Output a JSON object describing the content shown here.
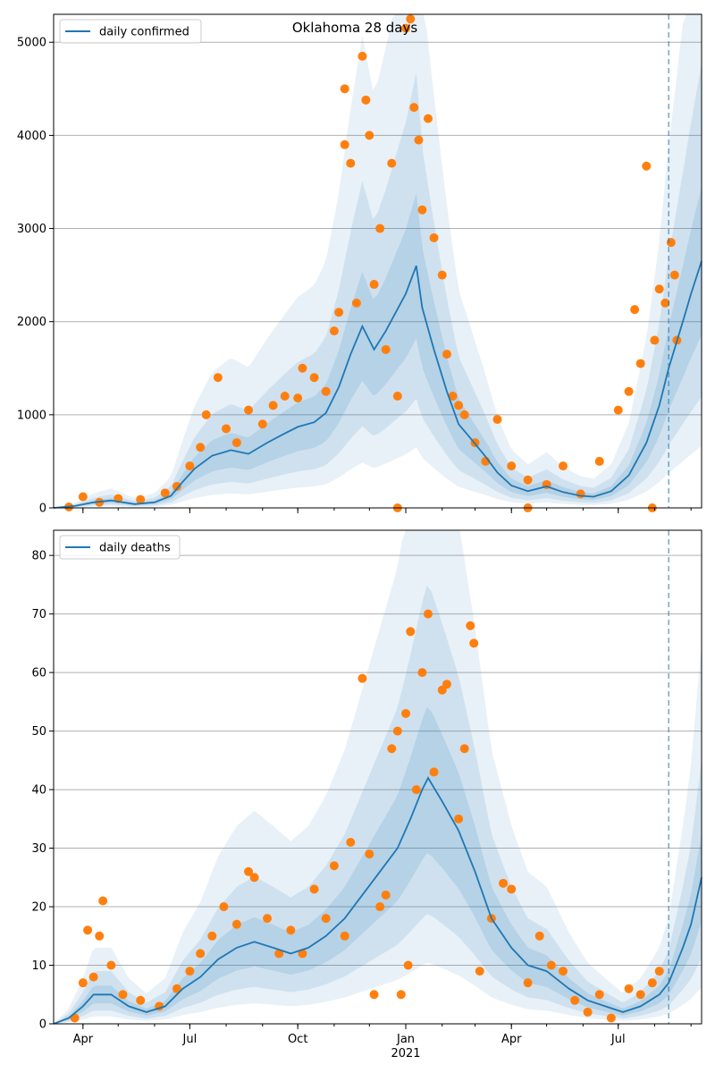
{
  "figure_title": "Oklahoma 28 days",
  "colors": {
    "line": "#1f77b4",
    "points": "#ff7f0e",
    "band": "#1f77b4",
    "grid": "#b0b0b0"
  },
  "x_axis": {
    "tick_labels": [
      "Apr",
      "Jul",
      "Oct",
      "Jan",
      "Apr",
      "Jul"
    ],
    "year_label": "2021",
    "range": [
      "2020-03-07",
      "2021-09-10"
    ],
    "forecast_start": "2021-08-13"
  },
  "chart_data": [
    {
      "type": "line",
      "legend": "daily confirmed",
      "legend_position": "top-left",
      "grid": "y",
      "ylim": [
        0,
        5300
      ],
      "yticks": [
        0,
        1000,
        2000,
        3000,
        4000,
        5000
      ],
      "series": [
        {
          "name": "daily confirmed",
          "kind": "line",
          "points": [
            [
              "2020-03-07",
              0
            ],
            [
              "2020-03-25",
              20
            ],
            [
              "2020-04-10",
              60
            ],
            [
              "2020-04-25",
              80
            ],
            [
              "2020-05-15",
              40
            ],
            [
              "2020-06-01",
              60
            ],
            [
              "2020-06-15",
              130
            ],
            [
              "2020-06-25",
              280
            ],
            [
              "2020-07-05",
              420
            ],
            [
              "2020-07-20",
              560
            ],
            [
              "2020-08-05",
              620
            ],
            [
              "2020-08-20",
              580
            ],
            [
              "2020-09-05",
              700
            ],
            [
              "2020-09-20",
              800
            ],
            [
              "2020-10-01",
              870
            ],
            [
              "2020-10-15",
              920
            ],
            [
              "2020-10-25",
              1020
            ],
            [
              "2020-11-05",
              1300
            ],
            [
              "2020-11-15",
              1650
            ],
            [
              "2020-11-25",
              1950
            ],
            [
              "2020-12-05",
              1700
            ],
            [
              "2020-12-15",
              1900
            ],
            [
              "2021-01-01",
              2300
            ],
            [
              "2021-01-10",
              2600
            ],
            [
              "2021-01-15",
              2150
            ],
            [
              "2021-01-25",
              1700
            ],
            [
              "2021-02-05",
              1250
            ],
            [
              "2021-02-15",
              900
            ],
            [
              "2021-02-25",
              750
            ],
            [
              "2021-03-10",
              550
            ],
            [
              "2021-03-20",
              380
            ],
            [
              "2021-04-01",
              240
            ],
            [
              "2021-04-15",
              180
            ],
            [
              "2021-05-01",
              230
            ],
            [
              "2021-05-15",
              170
            ],
            [
              "2021-05-30",
              130
            ],
            [
              "2021-06-10",
              120
            ],
            [
              "2021-06-25",
              180
            ],
            [
              "2021-07-10",
              350
            ],
            [
              "2021-07-25",
              700
            ],
            [
              "2021-08-05",
              1100
            ],
            [
              "2021-08-13",
              1500
            ],
            [
              "2021-08-25",
              2000
            ],
            [
              "2021-09-01",
              2300
            ],
            [
              "2021-09-10",
              2650
            ]
          ]
        },
        {
          "name": "reported daily confirmed",
          "kind": "scatter",
          "points": [
            [
              "2020-03-20",
              10
            ],
            [
              "2020-04-01",
              120
            ],
            [
              "2020-04-15",
              60
            ],
            [
              "2020-05-01",
              100
            ],
            [
              "2020-05-20",
              90
            ],
            [
              "2020-06-10",
              160
            ],
            [
              "2020-06-20",
              230
            ],
            [
              "2020-07-01",
              450
            ],
            [
              "2020-07-10",
              650
            ],
            [
              "2020-07-15",
              1000
            ],
            [
              "2020-07-25",
              1400
            ],
            [
              "2020-08-01",
              850
            ],
            [
              "2020-08-10",
              700
            ],
            [
              "2020-08-20",
              1050
            ],
            [
              "2020-09-01",
              900
            ],
            [
              "2020-09-10",
              1100
            ],
            [
              "2020-09-20",
              1200
            ],
            [
              "2020-10-01",
              1180
            ],
            [
              "2020-10-05",
              1500
            ],
            [
              "2020-10-15",
              1400
            ],
            [
              "2020-10-25",
              1250
            ],
            [
              "2020-11-01",
              1900
            ],
            [
              "2020-11-05",
              2100
            ],
            [
              "2020-11-10",
              3900
            ],
            [
              "2020-11-10",
              4500
            ],
            [
              "2020-11-15",
              3700
            ],
            [
              "2020-11-20",
              2200
            ],
            [
              "2020-11-25",
              4850
            ],
            [
              "2020-11-28",
              4380
            ],
            [
              "2020-12-01",
              4000
            ],
            [
              "2020-12-05",
              2400
            ],
            [
              "2020-12-10",
              3000
            ],
            [
              "2020-12-15",
              1700
            ],
            [
              "2020-12-20",
              3700
            ],
            [
              "2020-12-25",
              1200
            ],
            [
              "2021-01-01",
              5150
            ],
            [
              "2021-01-05",
              5250
            ],
            [
              "2021-01-08",
              4300
            ],
            [
              "2021-01-12",
              3950
            ],
            [
              "2021-01-15",
              3200
            ],
            [
              "2021-01-20",
              4180
            ],
            [
              "2021-01-25",
              2900
            ],
            [
              "2021-02-01",
              2500
            ],
            [
              "2021-02-05",
              1650
            ],
            [
              "2021-02-10",
              1200
            ],
            [
              "2021-02-15",
              1100
            ],
            [
              "2021-02-20",
              1000
            ],
            [
              "2021-03-01",
              700
            ],
            [
              "2021-03-10",
              500
            ],
            [
              "2021-03-20",
              950
            ],
            [
              "2021-04-01",
              450
            ],
            [
              "2021-04-15",
              300
            ],
            [
              "2021-05-01",
              250
            ],
            [
              "2021-05-15",
              450
            ],
            [
              "2021-05-30",
              150
            ],
            [
              "2021-06-15",
              500
            ],
            [
              "2021-07-01",
              1050
            ],
            [
              "2021-07-10",
              1250
            ],
            [
              "2021-07-15",
              2130
            ],
            [
              "2021-07-20",
              1550
            ],
            [
              "2021-07-25",
              3670
            ],
            [
              "2021-08-01",
              1800
            ],
            [
              "2021-08-05",
              2350
            ],
            [
              "2021-08-10",
              2200
            ],
            [
              "2021-08-15",
              2850
            ],
            [
              "2021-08-18",
              2500
            ],
            [
              "2021-08-20",
              1800
            ],
            [
              "2020-12-25",
              0
            ],
            [
              "2021-04-15",
              0
            ],
            [
              "2021-07-30",
              0
            ]
          ]
        }
      ]
    },
    {
      "type": "line",
      "legend": "daily deaths",
      "legend_position": "top-left",
      "grid": "y",
      "ylim": [
        0,
        84.3
      ],
      "yticks": [
        0,
        10,
        20,
        30,
        40,
        50,
        60,
        70,
        80
      ],
      "series": [
        {
          "name": "daily deaths",
          "kind": "line",
          "points": [
            [
              "2020-03-07",
              0
            ],
            [
              "2020-03-20",
              1
            ],
            [
              "2020-04-01",
              3
            ],
            [
              "2020-04-10",
              5
            ],
            [
              "2020-04-25",
              5
            ],
            [
              "2020-05-10",
              3
            ],
            [
              "2020-05-25",
              2
            ],
            [
              "2020-06-10",
              3
            ],
            [
              "2020-06-25",
              6
            ],
            [
              "2020-07-10",
              8
            ],
            [
              "2020-07-25",
              11
            ],
            [
              "2020-08-10",
              13
            ],
            [
              "2020-08-25",
              14
            ],
            [
              "2020-09-10",
              13
            ],
            [
              "2020-09-25",
              12
            ],
            [
              "2020-10-10",
              13
            ],
            [
              "2020-10-25",
              15
            ],
            [
              "2020-11-10",
              18
            ],
            [
              "2020-11-25",
              22
            ],
            [
              "2020-12-10",
              26
            ],
            [
              "2020-12-25",
              30
            ],
            [
              "2021-01-05",
              35
            ],
            [
              "2021-01-15",
              40
            ],
            [
              "2021-01-20",
              42
            ],
            [
              "2021-02-01",
              38
            ],
            [
              "2021-02-15",
              33
            ],
            [
              "2021-03-01",
              26
            ],
            [
              "2021-03-15",
              18
            ],
            [
              "2021-04-01",
              13
            ],
            [
              "2021-04-15",
              10
            ],
            [
              "2021-05-01",
              9
            ],
            [
              "2021-05-20",
              6
            ],
            [
              "2021-06-05",
              4
            ],
            [
              "2021-06-20",
              3
            ],
            [
              "2021-07-05",
              2
            ],
            [
              "2021-07-20",
              3
            ],
            [
              "2021-08-05",
              5
            ],
            [
              "2021-08-13",
              7
            ],
            [
              "2021-08-25",
              13
            ],
            [
              "2021-09-01",
              17
            ],
            [
              "2021-09-10",
              25
            ]
          ]
        },
        {
          "name": "reported daily deaths",
          "kind": "scatter",
          "points": [
            [
              "2020-03-25",
              1
            ],
            [
              "2020-04-01",
              7
            ],
            [
              "2020-04-05",
              16
            ],
            [
              "2020-04-10",
              8
            ],
            [
              "2020-04-15",
              15
            ],
            [
              "2020-04-18",
              21
            ],
            [
              "2020-04-25",
              10
            ],
            [
              "2020-05-05",
              5
            ],
            [
              "2020-05-20",
              4
            ],
            [
              "2020-06-05",
              3
            ],
            [
              "2020-06-20",
              6
            ],
            [
              "2020-07-01",
              9
            ],
            [
              "2020-07-10",
              12
            ],
            [
              "2020-07-20",
              15
            ],
            [
              "2020-07-30",
              20
            ],
            [
              "2020-08-10",
              17
            ],
            [
              "2020-08-20",
              26
            ],
            [
              "2020-08-25",
              25
            ],
            [
              "2020-09-05",
              18
            ],
            [
              "2020-09-15",
              12
            ],
            [
              "2020-09-25",
              16
            ],
            [
              "2020-10-05",
              12
            ],
            [
              "2020-10-15",
              23
            ],
            [
              "2020-10-25",
              18
            ],
            [
              "2020-11-01",
              27
            ],
            [
              "2020-11-10",
              15
            ],
            [
              "2020-11-15",
              31
            ],
            [
              "2020-11-25",
              59
            ],
            [
              "2020-12-01",
              29
            ],
            [
              "2020-12-05",
              5
            ],
            [
              "2020-12-10",
              20
            ],
            [
              "2020-12-15",
              22
            ],
            [
              "2020-12-20",
              47
            ],
            [
              "2020-12-25",
              50
            ],
            [
              "2021-01-01",
              53
            ],
            [
              "2021-01-05",
              67
            ],
            [
              "2021-01-10",
              40
            ],
            [
              "2021-01-15",
              60
            ],
            [
              "2021-01-20",
              70
            ],
            [
              "2021-01-25",
              43
            ],
            [
              "2021-02-01",
              57
            ],
            [
              "2021-02-05",
              58
            ],
            [
              "2021-02-15",
              35
            ],
            [
              "2021-02-20",
              47
            ],
            [
              "2021-02-25",
              68
            ],
            [
              "2021-02-28",
              65
            ],
            [
              "2021-03-05",
              9
            ],
            [
              "2021-03-15",
              18
            ],
            [
              "2021-03-25",
              24
            ],
            [
              "2021-04-01",
              23
            ],
            [
              "2021-04-15",
              7
            ],
            [
              "2021-04-25",
              15
            ],
            [
              "2021-05-05",
              10
            ],
            [
              "2021-05-15",
              9
            ],
            [
              "2021-05-25",
              4
            ],
            [
              "2021-06-05",
              2
            ],
            [
              "2021-06-15",
              5
            ],
            [
              "2021-06-25",
              1
            ],
            [
              "2021-07-10",
              6
            ],
            [
              "2021-07-20",
              5
            ],
            [
              "2021-07-30",
              7
            ],
            [
              "2021-08-05",
              9
            ],
            [
              "2020-12-28",
              5
            ],
            [
              "2021-01-03",
              10
            ]
          ]
        }
      ]
    }
  ]
}
